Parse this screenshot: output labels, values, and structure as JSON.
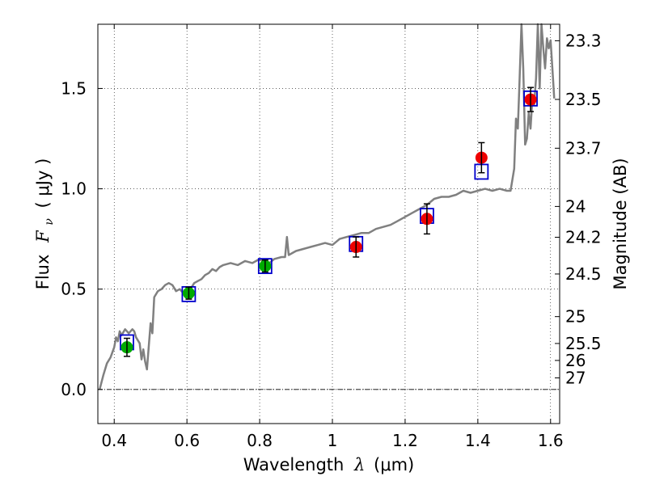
{
  "chart_data": {
    "type": "scatter",
    "xlabel_prefix": "Wavelength",
    "xlabel_math": "λ",
    "xlabel_unit": "(μm)",
    "ylabel_prefix": "Flux",
    "ylabel_math": "F",
    "ylabel_sub": "ν",
    "ylabel_unit": "( μJy )",
    "y2label": "Magnitude (AB)",
    "xlim": [
      0.355,
      1.625
    ],
    "ylim": [
      -0.17,
      1.82
    ],
    "grid": true,
    "x_ticks": [
      {
        "value": 0.4,
        "label": "0.4"
      },
      {
        "value": 0.6,
        "label": "0.6"
      },
      {
        "value": 0.8,
        "label": "0.8"
      },
      {
        "value": 1.0,
        "label": "1"
      },
      {
        "value": 1.2,
        "label": "1.2"
      },
      {
        "value": 1.4,
        "label": "1.4"
      },
      {
        "value": 1.6,
        "label": "1.6"
      }
    ],
    "y_ticks": [
      {
        "value": 0.0,
        "label": "0.0"
      },
      {
        "value": 0.5,
        "label": "0.5"
      },
      {
        "value": 1.0,
        "label": "1.0"
      },
      {
        "value": 1.5,
        "label": "1.5"
      }
    ],
    "mag_ticks": [
      {
        "mag": 23.3,
        "label": "23.3"
      },
      {
        "mag": 23.5,
        "label": "23.5"
      },
      {
        "mag": 23.7,
        "label": "23.7"
      },
      {
        "mag": 24,
        "label": "24"
      },
      {
        "mag": 24.2,
        "label": "24.2"
      },
      {
        "mag": 24.5,
        "label": "24.5"
      },
      {
        "mag": 25,
        "label": "25"
      },
      {
        "mag": 25.5,
        "label": "25.5"
      },
      {
        "mag": 26,
        "label": "26"
      },
      {
        "mag": 27,
        "label": "27"
      }
    ],
    "series": [
      {
        "name": "model spectrum",
        "kind": "line",
        "color": "#808080",
        "x": [
          0.36,
          0.37,
          0.38,
          0.39,
          0.4,
          0.405,
          0.41,
          0.415,
          0.42,
          0.43,
          0.44,
          0.45,
          0.455,
          0.46,
          0.47,
          0.475,
          0.48,
          0.485,
          0.49,
          0.5,
          0.505,
          0.51,
          0.52,
          0.53,
          0.54,
          0.55,
          0.56,
          0.57,
          0.58,
          0.59,
          0.6,
          0.61,
          0.62,
          0.63,
          0.64,
          0.65,
          0.66,
          0.67,
          0.68,
          0.69,
          0.7,
          0.72,
          0.74,
          0.76,
          0.78,
          0.8,
          0.82,
          0.84,
          0.86,
          0.87,
          0.875,
          0.88,
          0.9,
          0.92,
          0.94,
          0.96,
          0.98,
          1.0,
          1.02,
          1.04,
          1.06,
          1.08,
          1.1,
          1.12,
          1.14,
          1.16,
          1.18,
          1.2,
          1.22,
          1.24,
          1.26,
          1.28,
          1.3,
          1.32,
          1.34,
          1.36,
          1.38,
          1.4,
          1.42,
          1.44,
          1.46,
          1.48,
          1.49,
          1.5,
          1.505,
          1.51,
          1.515,
          1.52,
          1.525,
          1.53,
          1.535,
          1.54,
          1.545,
          1.55,
          1.555,
          1.56,
          1.565,
          1.57,
          1.575,
          1.58,
          1.585,
          1.59,
          1.595,
          1.6,
          1.605,
          1.61
        ],
        "y": [
          0.0,
          0.07,
          0.13,
          0.16,
          0.21,
          0.26,
          0.24,
          0.29,
          0.27,
          0.3,
          0.28,
          0.3,
          0.29,
          0.26,
          0.23,
          0.15,
          0.2,
          0.14,
          0.1,
          0.33,
          0.28,
          0.46,
          0.49,
          0.5,
          0.52,
          0.53,
          0.52,
          0.49,
          0.5,
          0.48,
          0.49,
          0.5,
          0.53,
          0.54,
          0.55,
          0.57,
          0.58,
          0.6,
          0.59,
          0.61,
          0.62,
          0.63,
          0.62,
          0.64,
          0.63,
          0.65,
          0.62,
          0.65,
          0.66,
          0.66,
          0.76,
          0.67,
          0.69,
          0.7,
          0.71,
          0.72,
          0.73,
          0.72,
          0.75,
          0.76,
          0.77,
          0.78,
          0.78,
          0.8,
          0.81,
          0.82,
          0.84,
          0.86,
          0.88,
          0.9,
          0.92,
          0.95,
          0.96,
          0.96,
          0.97,
          0.99,
          0.98,
          0.99,
          1.0,
          0.99,
          1.0,
          0.99,
          0.99,
          1.1,
          1.35,
          1.3,
          1.55,
          1.82,
          1.6,
          1.22,
          1.25,
          1.38,
          1.3,
          1.45,
          1.42,
          1.55,
          1.82,
          1.5,
          1.82,
          1.7,
          1.6,
          1.75,
          1.7,
          1.74,
          1.6,
          1.45
        ]
      },
      {
        "name": "model photometry",
        "kind": "open-square",
        "color": "#0000cc",
        "x": [
          0.435,
          0.605,
          0.815,
          1.065,
          1.26,
          1.41,
          1.545
        ],
        "y": [
          0.235,
          0.475,
          0.615,
          0.725,
          0.865,
          1.085,
          1.45
        ]
      },
      {
        "name": "observed (green)",
        "kind": "filled-circle",
        "color": "#00aa00",
        "x": [
          0.435,
          0.605,
          0.815
        ],
        "y": [
          0.21,
          0.48,
          0.615
        ],
        "err": [
          0.045,
          0.03,
          0.03
        ]
      },
      {
        "name": "observed (red)",
        "kind": "filled-circle",
        "color": "#ee0000",
        "x": [
          1.065,
          1.26,
          1.41,
          1.545
        ],
        "y": [
          0.71,
          0.85,
          1.155,
          1.445
        ],
        "err": [
          0.05,
          0.075,
          0.075,
          0.06
        ]
      }
    ]
  }
}
